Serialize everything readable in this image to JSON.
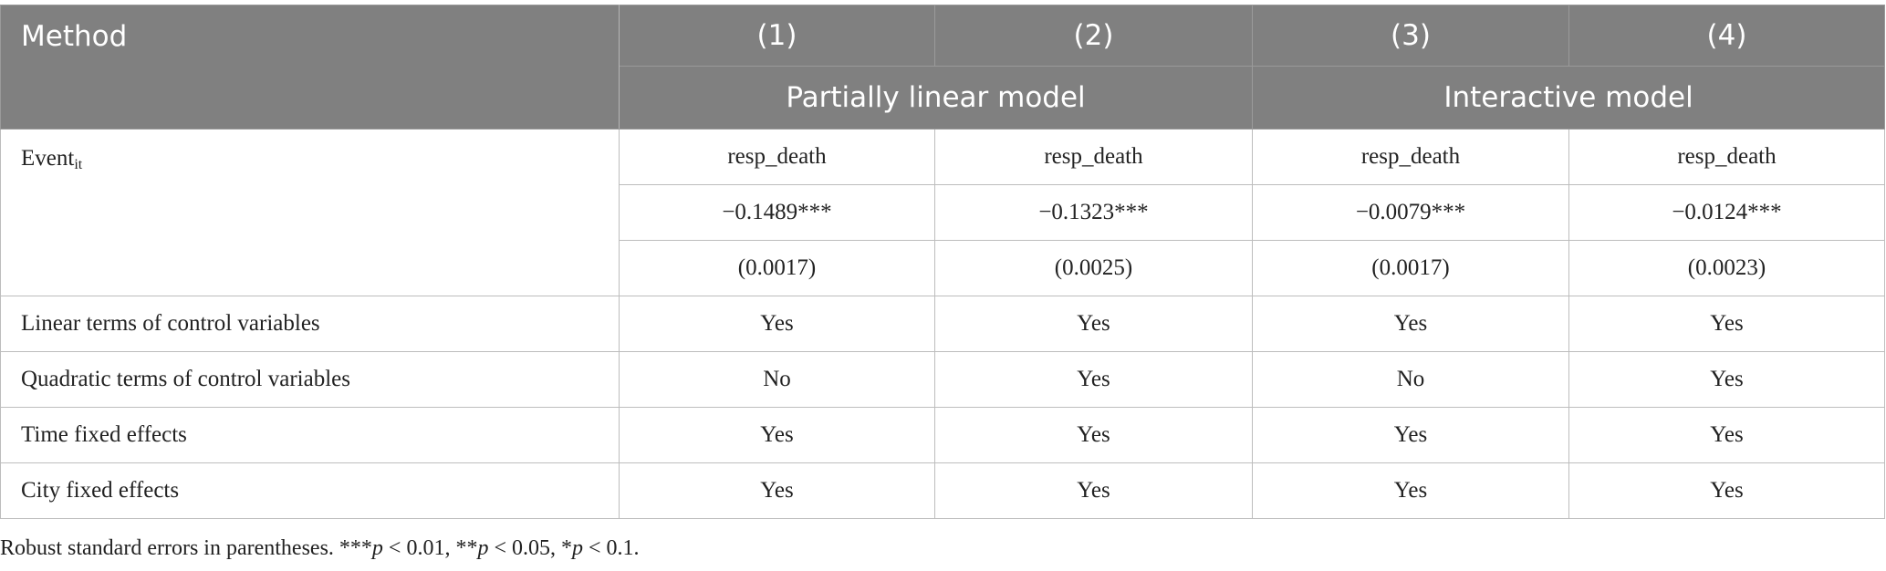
{
  "header": {
    "method": "Method",
    "columns": [
      "(1)",
      "(2)",
      "(3)",
      "(4)"
    ],
    "groups": [
      "Partially linear model",
      "Interactive model"
    ]
  },
  "event": {
    "label": "Event",
    "subscript": "it",
    "dependent": [
      "resp_death",
      "resp_death",
      "resp_death",
      "resp_death"
    ],
    "coefficients": [
      "−0.1489***",
      "−0.1323***",
      "−0.0079***",
      "−0.0124***"
    ],
    "standard_errors": [
      "(0.0017)",
      "(0.0025)",
      "(0.0017)",
      "(0.0023)"
    ]
  },
  "rows": [
    [
      "Linear terms of control variables",
      "Yes",
      "Yes",
      "Yes",
      "Yes"
    ],
    [
      "Quadratic terms of control variables",
      "No",
      "Yes",
      "No",
      "Yes"
    ],
    [
      "Time fixed effects",
      "Yes",
      "Yes",
      "Yes",
      "Yes"
    ],
    [
      "City fixed effects",
      "Yes",
      "Yes",
      "Yes",
      "Yes"
    ]
  ],
  "footnote": [
    "Robust standard errors in parentheses. ***",
    "p",
    " < 0.01, **",
    "p",
    " < 0.05, *",
    "p",
    " < 0.1."
  ]
}
